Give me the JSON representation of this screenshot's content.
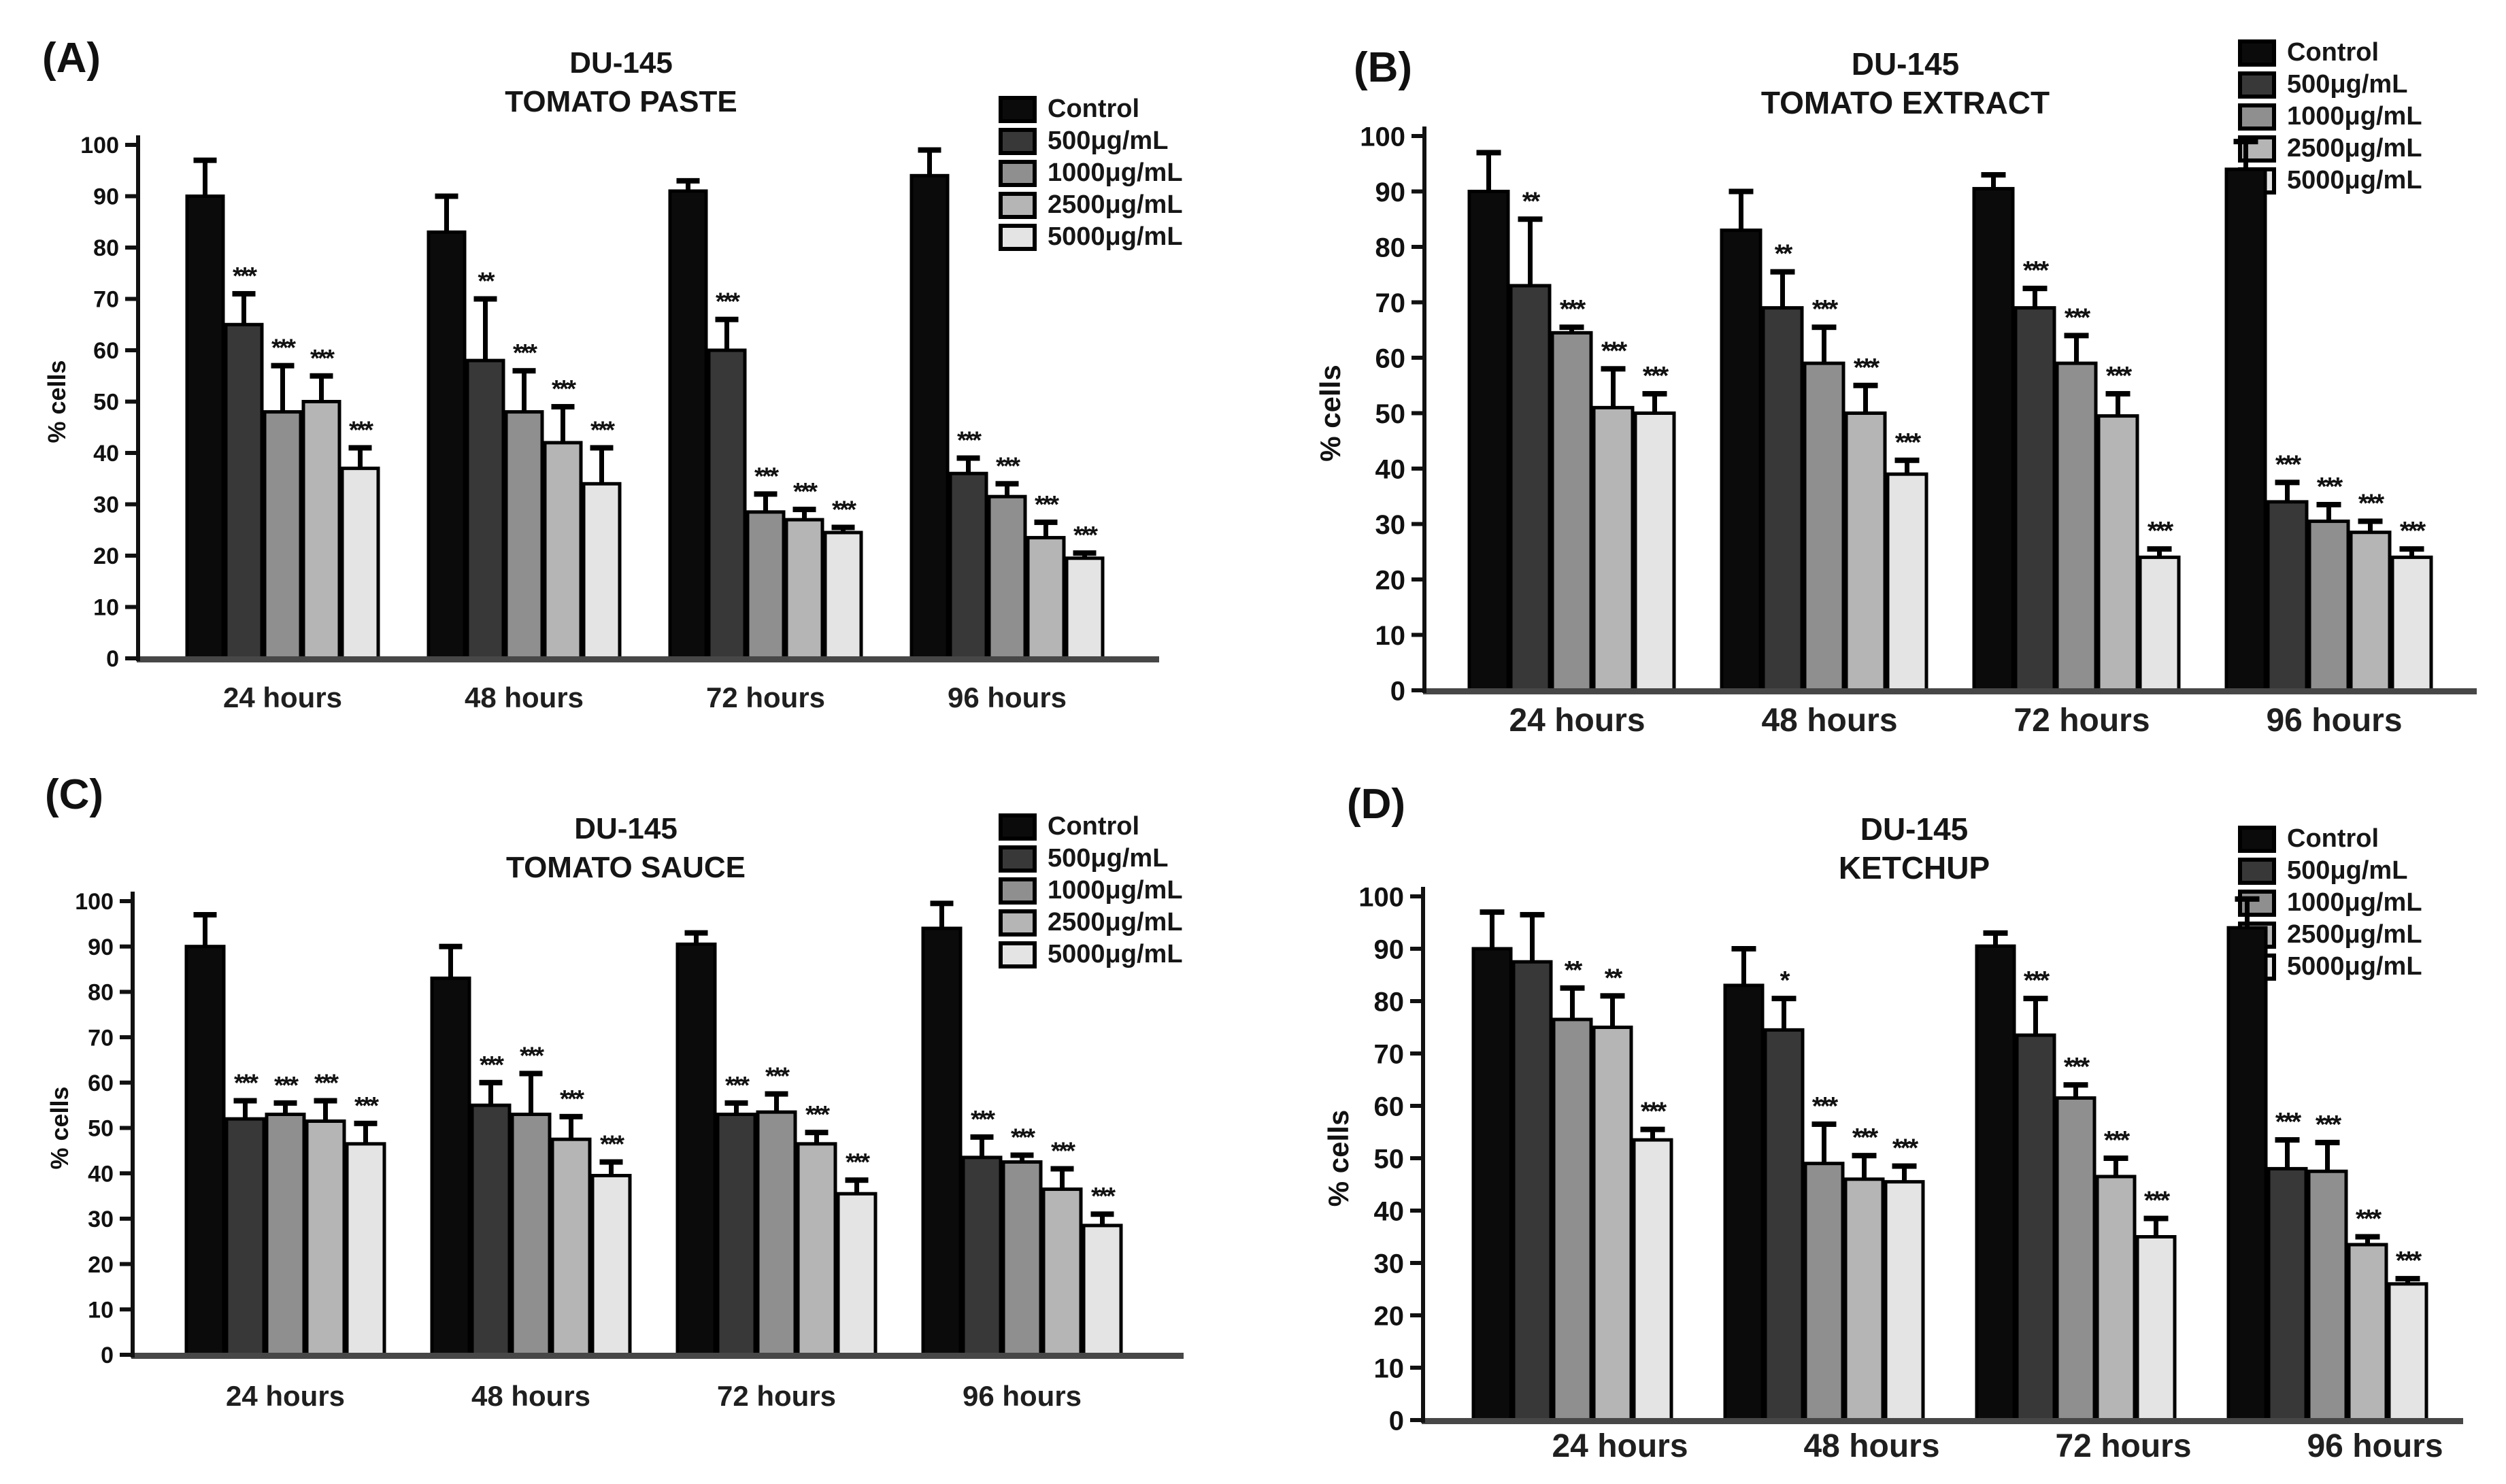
{
  "chart_data": [
    {
      "type": "bar",
      "panel": "(A)",
      "title": "DU-145",
      "subtitle": "TOMATO PASTE",
      "ylabel": "% cells",
      "ylim": [
        0,
        100
      ],
      "yticks": [
        0,
        10,
        20,
        30,
        40,
        50,
        60,
        70,
        80,
        90,
        100
      ],
      "categories": [
        "24 hours",
        "48 hours",
        "72 hours",
        "96 hours"
      ],
      "legend_position": "top-right",
      "grid": false,
      "series": [
        {
          "name": "Control",
          "color": "#0b0b0b",
          "values": [
            90,
            83,
            91,
            94
          ],
          "errors": [
            7,
            7,
            2,
            5
          ],
          "significance": [
            "",
            "",
            "",
            ""
          ]
        },
        {
          "name": "500μg/mL",
          "color": "#383838",
          "values": [
            65,
            58,
            60,
            36
          ],
          "errors": [
            6,
            12,
            6,
            3
          ],
          "significance": [
            "***",
            "**",
            "***",
            "***"
          ]
        },
        {
          "name": "1000μg/mL",
          "color": "#8f8f8f",
          "values": [
            48,
            48,
            28.5,
            31.5
          ],
          "errors": [
            9,
            8,
            3.5,
            2.5
          ],
          "significance": [
            "***",
            "***",
            "***",
            "***"
          ]
        },
        {
          "name": "2500μg/mL",
          "color": "#b5b5b5",
          "values": [
            50,
            42,
            27,
            23.5
          ],
          "errors": [
            5,
            7,
            2,
            3
          ],
          "significance": [
            "***",
            "***",
            "***",
            "***"
          ]
        },
        {
          "name": "5000μg/mL",
          "color": "#e4e4e4",
          "values": [
            37,
            34,
            24.5,
            19.5
          ],
          "errors": [
            4,
            7,
            1,
            1
          ],
          "significance": [
            "***",
            "***",
            "***",
            "***"
          ]
        }
      ]
    },
    {
      "type": "bar",
      "panel": "(B)",
      "title": "DU-145",
      "subtitle": "TOMATO EXTRACT",
      "ylabel": "% cells",
      "ylim": [
        0,
        100
      ],
      "yticks": [
        0,
        10,
        20,
        30,
        40,
        50,
        60,
        70,
        80,
        90,
        100
      ],
      "categories": [
        "24 hours",
        "48 hours",
        "72 hours",
        "96 hours"
      ],
      "legend_position": "top-right",
      "grid": false,
      "series": [
        {
          "name": "Control",
          "color": "#0b0b0b",
          "values": [
            90,
            83,
            90.5,
            94
          ],
          "errors": [
            7,
            7,
            2.5,
            5
          ],
          "significance": [
            "",
            "",
            "",
            ""
          ]
        },
        {
          "name": "500μg/mL",
          "color": "#383838",
          "values": [
            73,
            69,
            69,
            34
          ],
          "errors": [
            12,
            6.5,
            3.5,
            3.5
          ],
          "significance": [
            "**",
            "**",
            "***",
            "***"
          ]
        },
        {
          "name": "1000μg/mL",
          "color": "#8f8f8f",
          "values": [
            64.5,
            59,
            59,
            30.5
          ],
          "errors": [
            1,
            6.5,
            5,
            3
          ],
          "significance": [
            "***",
            "***",
            "***",
            "***"
          ]
        },
        {
          "name": "2500μg/mL",
          "color": "#b5b5b5",
          "values": [
            51,
            50,
            49.5,
            28.5
          ],
          "errors": [
            7,
            5,
            4,
            2
          ],
          "significance": [
            "***",
            "***",
            "***",
            "***"
          ]
        },
        {
          "name": "5000μg/mL",
          "color": "#e4e4e4",
          "values": [
            50,
            39,
            24,
            24
          ],
          "errors": [
            3.5,
            2.5,
            1.5,
            1.5
          ],
          "significance": [
            "***",
            "***",
            "***",
            "***"
          ]
        }
      ]
    },
    {
      "type": "bar",
      "panel": "(C)",
      "title": "DU-145",
      "subtitle": "TOMATO SAUCE",
      "ylabel": "% cells",
      "ylim": [
        0,
        100
      ],
      "yticks": [
        0,
        10,
        20,
        30,
        40,
        50,
        60,
        70,
        80,
        90,
        100
      ],
      "categories": [
        "24 hours",
        "48 hours",
        "72 hours",
        "96 hours"
      ],
      "legend_position": "top-right",
      "grid": false,
      "series": [
        {
          "name": "Control",
          "color": "#0b0b0b",
          "values": [
            90,
            83,
            90.5,
            94
          ],
          "errors": [
            7,
            7,
            2.5,
            5.5
          ],
          "significance": [
            "",
            "",
            "",
            ""
          ]
        },
        {
          "name": "500μg/mL",
          "color": "#383838",
          "values": [
            52,
            55,
            53,
            43.5
          ],
          "errors": [
            4,
            5,
            2.5,
            4.5
          ],
          "significance": [
            "***",
            "***",
            "***",
            "***"
          ]
        },
        {
          "name": "1000μg/mL",
          "color": "#8f8f8f",
          "values": [
            53,
            53,
            53.5,
            42.5
          ],
          "errors": [
            2.5,
            9,
            4,
            1.5
          ],
          "significance": [
            "***",
            "***",
            "***",
            "***"
          ]
        },
        {
          "name": "2500μg/mL",
          "color": "#b5b5b5",
          "values": [
            51.5,
            47.5,
            46.5,
            36.5
          ],
          "errors": [
            4.5,
            5,
            2.5,
            4.5
          ],
          "significance": [
            "***",
            "***",
            "***",
            "***"
          ]
        },
        {
          "name": "5000μg/mL",
          "color": "#e4e4e4",
          "values": [
            46.5,
            39.5,
            35.5,
            28.5
          ],
          "errors": [
            4.5,
            3,
            3,
            2.5
          ],
          "significance": [
            "***",
            "***",
            "***",
            "***"
          ]
        }
      ]
    },
    {
      "type": "bar",
      "panel": "(D)",
      "title": "DU-145",
      "subtitle": "KETCHUP",
      "ylabel": "% cells",
      "ylim": [
        0,
        100
      ],
      "yticks": [
        0,
        10,
        20,
        30,
        40,
        50,
        60,
        70,
        80,
        90,
        100
      ],
      "categories": [
        "24 hours",
        "48 hours",
        "72 hours",
        "96 hours"
      ],
      "legend_position": "top-right",
      "grid": false,
      "series": [
        {
          "name": "Control",
          "color": "#0b0b0b",
          "values": [
            90,
            83,
            90.5,
            94
          ],
          "errors": [
            7,
            7,
            2.5,
            5.5
          ],
          "significance": [
            "",
            "",
            "",
            ""
          ]
        },
        {
          "name": "500μg/mL",
          "color": "#383838",
          "values": [
            87.5,
            74.5,
            73.5,
            48
          ],
          "errors": [
            9,
            6,
            7,
            5.5
          ],
          "significance": [
            "",
            "*",
            "***",
            "***"
          ]
        },
        {
          "name": "1000μg/mL",
          "color": "#8f8f8f",
          "values": [
            76.5,
            49,
            61.5,
            47.5
          ],
          "errors": [
            6,
            7.5,
            2.5,
            5.5
          ],
          "significance": [
            "**",
            "***",
            "***",
            "***"
          ]
        },
        {
          "name": "2500μg/mL",
          "color": "#b5b5b5",
          "values": [
            75,
            46,
            46.5,
            33.5
          ],
          "errors": [
            6,
            4.5,
            3.5,
            1.5
          ],
          "significance": [
            "**",
            "***",
            "***",
            "***"
          ]
        },
        {
          "name": "5000μg/mL",
          "color": "#e4e4e4",
          "values": [
            53.5,
            45.5,
            35,
            26
          ],
          "errors": [
            2,
            3,
            3.5,
            1
          ],
          "significance": [
            "***",
            "***",
            "***",
            "***"
          ]
        }
      ]
    }
  ]
}
